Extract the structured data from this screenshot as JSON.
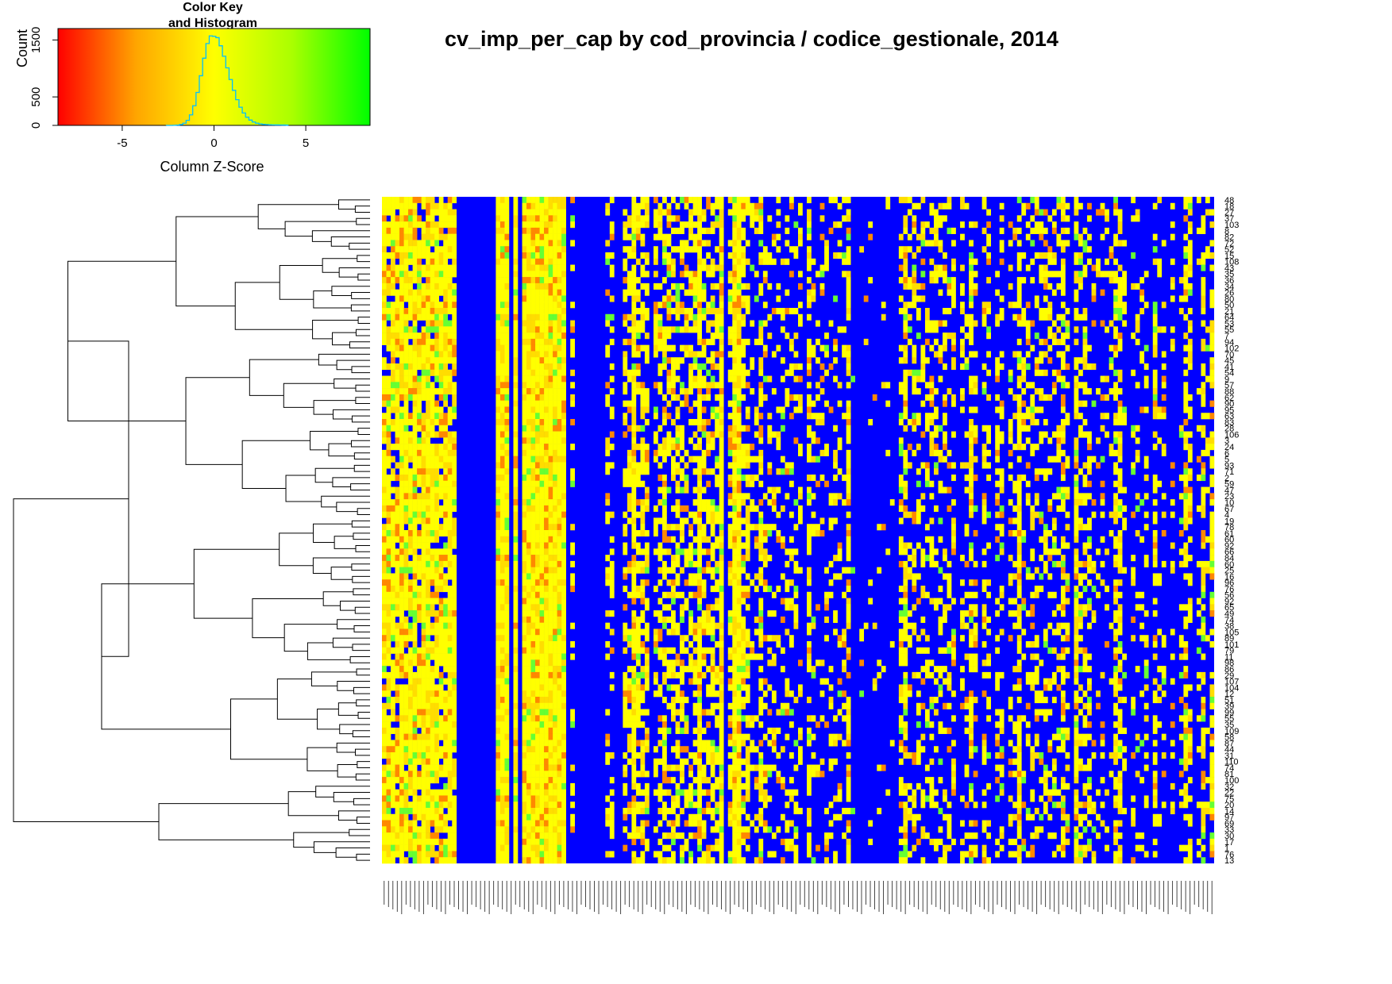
{
  "title": "cv_imp_per_cap by cod_provincia / codice_gestionale, 2014",
  "chart_data": {
    "type": "heatmap",
    "title": "cv_imp_per_cap by cod_provincia / codice_gestionale, 2014",
    "color_key": {
      "title_line1": "Color Key",
      "title_line2": "and Histogram",
      "xlabel": "Column Z-Score",
      "ylabel": "Count",
      "x_ticks": [
        "-5",
        "0",
        "5"
      ],
      "y_ticks": [
        "0",
        "500",
        "1500"
      ],
      "x_range": [
        -8.5,
        8.5
      ],
      "y_range": [
        0,
        1700
      ],
      "gradient": [
        "#ff0000",
        "#ffa500",
        "#ffff00",
        "#aaff00",
        "#00ff00"
      ],
      "histogram_color": "#00bfff"
    },
    "row_labels": [
      "48",
      "18",
      "27",
      "37",
      "103",
      "8",
      "82",
      "72",
      "52",
      "15",
      "108",
      "43",
      "35",
      "36",
      "34",
      "26",
      "80",
      "50",
      "21",
      "64",
      "53",
      "55",
      "7",
      "94",
      "102",
      "70",
      "45",
      "41",
      "54",
      "9",
      "57",
      "88",
      "62",
      "90",
      "95",
      "63",
      "83",
      "28",
      "106",
      "3",
      "24",
      "6",
      "5",
      "93",
      "71",
      "2",
      "59",
      "47",
      "23",
      "10",
      "67",
      "4",
      "19",
      "78",
      "61",
      "60",
      "92",
      "66",
      "84",
      "60",
      "25",
      "16",
      "96",
      "76",
      "56",
      "92",
      "65",
      "49",
      "74",
      "38",
      "105",
      "89",
      "101",
      "79",
      "11",
      "98",
      "86",
      "29",
      "107",
      "104",
      "12",
      "51",
      "39",
      "99",
      "55",
      "35",
      "109",
      "58",
      "87",
      "44",
      "31",
      "110",
      "74",
      "81",
      "100",
      "32",
      "22",
      "75",
      "20",
      "14",
      "97",
      "69",
      "33",
      "30",
      "17",
      "1",
      "76",
      "13"
    ],
    "colors": {
      "low": "#ff8800",
      "mid": "#ffff00",
      "high": "#66ff33",
      "missing": "#0000ff"
    }
  }
}
